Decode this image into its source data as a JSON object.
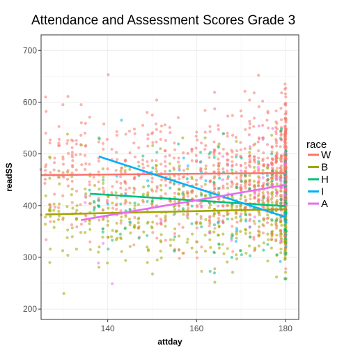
{
  "chart_data": {
    "type": "scatter",
    "title": "Attendance and Assessment Scores Grade 3",
    "xlabel": "attday",
    "ylabel": "readSS",
    "xlim": [
      125,
      183
    ],
    "ylim": [
      180,
      730
    ],
    "x_ticks": [
      140,
      160,
      180
    ],
    "y_ticks": [
      200,
      300,
      400,
      500,
      600,
      700
    ],
    "grid": true,
    "legend": {
      "title": "race",
      "position": "right"
    },
    "series": [
      {
        "name": "W",
        "color": "#F8766D",
        "fit": {
          "x": [
            125,
            180
          ],
          "y": [
            459,
            463
          ]
        }
      },
      {
        "name": "B",
        "color": "#A3A500",
        "fit": {
          "x": [
            126,
            180
          ],
          "y": [
            383,
            393
          ]
        }
      },
      {
        "name": "H",
        "color": "#00BF7D",
        "fit": {
          "x": [
            136,
            180
          ],
          "y": [
            423,
            399
          ]
        }
      },
      {
        "name": "I",
        "color": "#00B0F6",
        "fit": {
          "x": [
            138,
            180
          ],
          "y": [
            495,
            378
          ]
        }
      },
      {
        "name": "A",
        "color": "#E76BF3",
        "fit": {
          "x": [
            134,
            180
          ],
          "y": [
            372,
            440
          ]
        }
      }
    ]
  }
}
